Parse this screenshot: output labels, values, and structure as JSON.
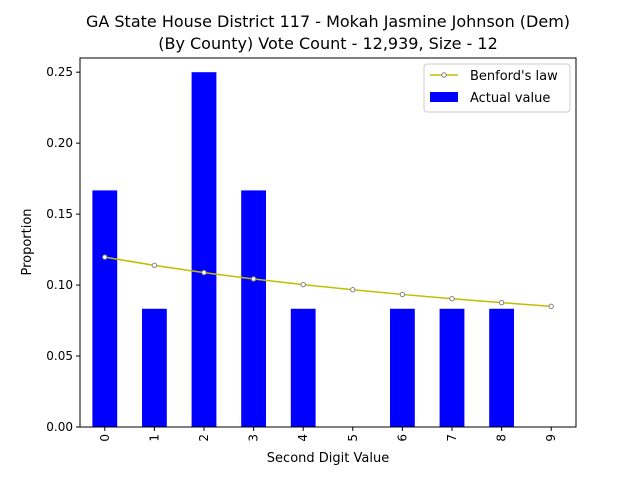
{
  "chart_data": {
    "type": "bar",
    "title": "GA State House District 117 - Mokah Jasmine Johnson (Dem)",
    "subtitle": "(By County) Vote Count - 12,939, Size - 12",
    "xlabel": "Second Digit Value",
    "ylabel": "Proportion",
    "categories": [
      "0",
      "1",
      "2",
      "3",
      "4",
      "5",
      "6",
      "7",
      "8",
      "9"
    ],
    "ylim": [
      0,
      0.26
    ],
    "yticks": [
      0.0,
      0.05,
      0.1,
      0.15,
      0.2,
      0.25
    ],
    "ytick_labels": [
      "0.00",
      "0.05",
      "0.10",
      "0.15",
      "0.20",
      "0.25"
    ],
    "grid": false,
    "legend_position": "top-right",
    "series": [
      {
        "name": "Actual value",
        "type": "bar",
        "color": "#0000ff",
        "values": [
          0.1667,
          0.0833,
          0.25,
          0.1667,
          0.0833,
          0.0,
          0.0833,
          0.0833,
          0.0833,
          0.0
        ]
      },
      {
        "name": "Benford's law",
        "type": "line",
        "color": "#bfbf00",
        "marker_color": "#808080",
        "values": [
          0.1197,
          0.1139,
          0.1088,
          0.1043,
          0.1003,
          0.0967,
          0.0934,
          0.0904,
          0.0876,
          0.085
        ]
      }
    ]
  }
}
